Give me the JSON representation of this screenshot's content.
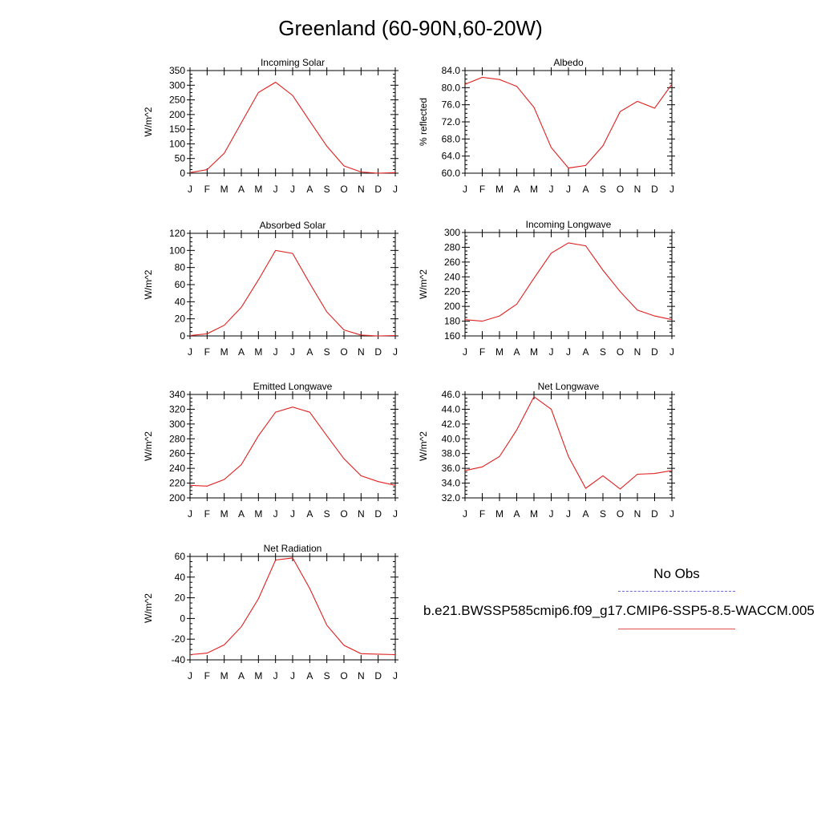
{
  "title": "Greenland (60-90N,60-20W)",
  "legend": {
    "obs_label": "No Obs",
    "model_label": "b.e21.BWSSP585cmip6.f09_g17.CMIP6-SSP5-8.5-WACCM.005",
    "obs_color": "#6a6ae0",
    "model_color": "#e02020"
  },
  "chart_data": [
    {
      "type": "line",
      "title": "Incoming Solar",
      "ylabel": "W/m^2",
      "x": [
        "J",
        "F",
        "M",
        "A",
        "M",
        "J",
        "J",
        "A",
        "S",
        "O",
        "N",
        "D",
        "J"
      ],
      "ylim": [
        0,
        350
      ],
      "yticks": [
        "0",
        "50",
        "100",
        "150",
        "200",
        "250",
        "300",
        "350"
      ],
      "series": [
        {
          "values": [
            2,
            12,
            68,
            172,
            275,
            310,
            265,
            178,
            92,
            25,
            4,
            0,
            2
          ]
        }
      ]
    },
    {
      "type": "line",
      "title": "Albedo",
      "ylabel": "% reflected",
      "x": [
        "J",
        "F",
        "M",
        "A",
        "M",
        "J",
        "J",
        "A",
        "S",
        "O",
        "N",
        "D",
        "J"
      ],
      "ylim": [
        60,
        84
      ],
      "yticks": [
        "60.0",
        "64.0",
        "68.0",
        "72.0",
        "76.0",
        "80.0",
        "84.0"
      ],
      "series": [
        {
          "values": [
            80.8,
            82.4,
            81.9,
            80.3,
            75.4,
            66.0,
            61.2,
            61.8,
            66.4,
            74.4,
            76.8,
            75.2,
            80.8
          ]
        }
      ]
    },
    {
      "type": "line",
      "title": "Absorbed Solar",
      "ylabel": "W/m^2",
      "x": [
        "J",
        "F",
        "M",
        "A",
        "M",
        "J",
        "J",
        "A",
        "S",
        "O",
        "N",
        "D",
        "J"
      ],
      "ylim": [
        0,
        120
      ],
      "yticks": [
        "0",
        "20",
        "40",
        "60",
        "80",
        "100",
        "120"
      ],
      "series": [
        {
          "values": [
            0.5,
            2.5,
            12.5,
            33.5,
            65.5,
            100,
            96.5,
            61.5,
            28,
            7,
            1,
            0,
            0.5
          ]
        }
      ]
    },
    {
      "type": "line",
      "title": "Incoming Longwave",
      "ylabel": "W/m^2",
      "x": [
        "J",
        "F",
        "M",
        "A",
        "M",
        "J",
        "J",
        "A",
        "S",
        "O",
        "N",
        "D",
        "J"
      ],
      "ylim": [
        160,
        300
      ],
      "yticks": [
        "160",
        "180",
        "200",
        "220",
        "240",
        "260",
        "280",
        "300"
      ],
      "series": [
        {
          "values": [
            182,
            180,
            187,
            203,
            238,
            272,
            286,
            282,
            249,
            220,
            195,
            187,
            182
          ]
        }
      ]
    },
    {
      "type": "line",
      "title": "Emitted Longwave",
      "ylabel": "W/m^2",
      "x": [
        "J",
        "F",
        "M",
        "A",
        "M",
        "J",
        "J",
        "A",
        "S",
        "O",
        "N",
        "D",
        "J"
      ],
      "ylim": [
        200,
        340
      ],
      "yticks": [
        "200",
        "220",
        "240",
        "260",
        "280",
        "300",
        "320",
        "340"
      ],
      "series": [
        {
          "values": [
            217,
            216,
            225,
            245,
            284,
            316,
            323,
            316,
            284,
            253,
            230,
            222,
            217
          ]
        }
      ]
    },
    {
      "type": "line",
      "title": "Net Longwave",
      "ylabel": "W/m^2",
      "x": [
        "J",
        "F",
        "M",
        "A",
        "M",
        "J",
        "J",
        "A",
        "S",
        "O",
        "N",
        "D",
        "J"
      ],
      "ylim": [
        32,
        46
      ],
      "yticks": [
        "32.0",
        "34.0",
        "36.0",
        "38.0",
        "40.0",
        "42.0",
        "44.0",
        "46.0"
      ],
      "series": [
        {
          "values": [
            35.7,
            36.2,
            37.6,
            41.2,
            45.7,
            44.0,
            37.6,
            33.3,
            35.0,
            33.2,
            35.2,
            35.3,
            35.7
          ]
        }
      ]
    },
    {
      "type": "line",
      "title": "Net Radiation",
      "ylabel": "W/m^2",
      "x": [
        "J",
        "F",
        "M",
        "A",
        "M",
        "J",
        "J",
        "A",
        "S",
        "O",
        "N",
        "D",
        "J"
      ],
      "ylim": [
        -40,
        60
      ],
      "yticks": [
        "-40",
        "-20",
        "0",
        "20",
        "40",
        "60"
      ],
      "series": [
        {
          "values": [
            -35,
            -33.5,
            -25.5,
            -8,
            19,
            56.5,
            58.5,
            29,
            -6.5,
            -26,
            -34,
            -34.5,
            -35
          ]
        }
      ]
    }
  ]
}
